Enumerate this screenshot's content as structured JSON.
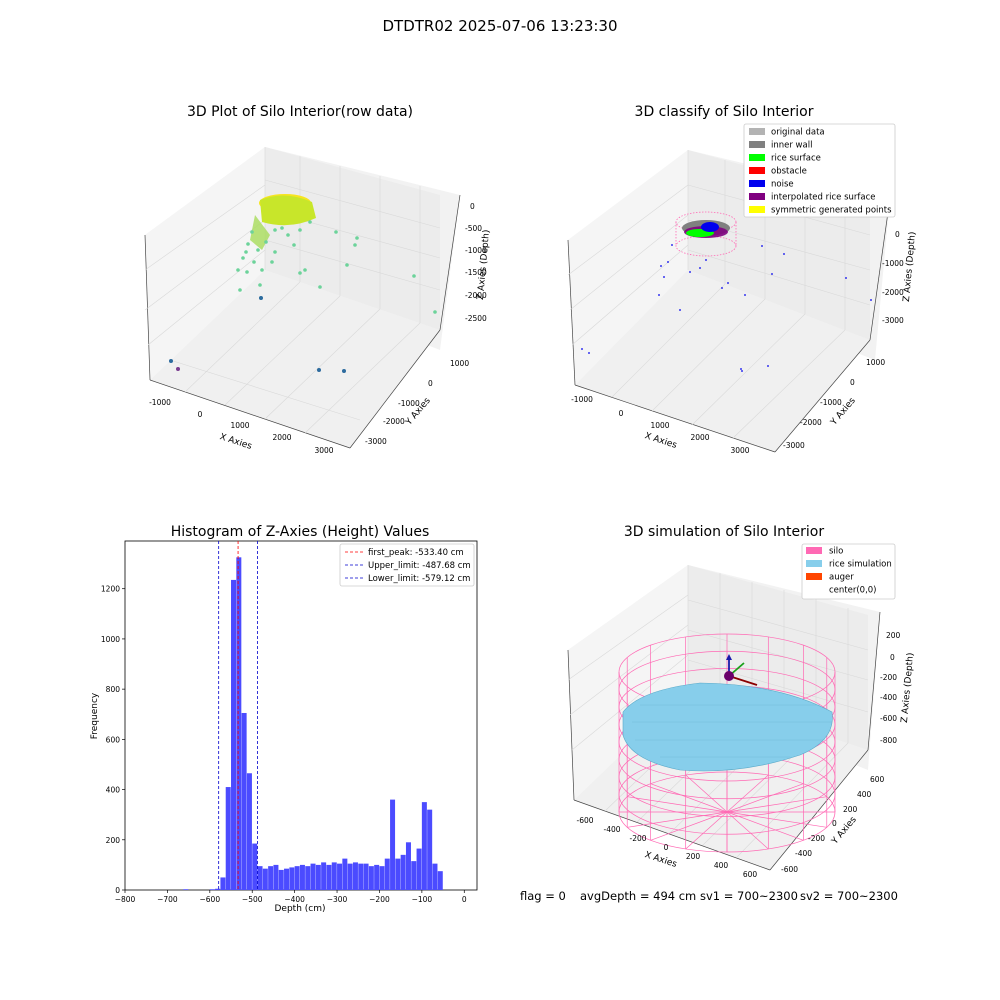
{
  "figure": {
    "title": "DTDTR02 2025-07-06 13:23:30",
    "footer": {
      "flag": "flag = 0",
      "avg_depth": "avgDepth = 494 cm",
      "sv1": "sv1 = 700~2300",
      "sv2": "sv2 = 700~2300"
    }
  },
  "chart_data": [
    {
      "type": "scatter",
      "title": "3D Plot of Silo Interior(row data)",
      "xlabel": "X Axies",
      "ylabel": "Y Axies",
      "zlabel": "Z Axies (Depth)",
      "x_ticks": [
        "-1000",
        "0",
        "1000",
        "2000",
        "3000"
      ],
      "y_ticks": [
        "1000",
        "0",
        "-1000",
        "-2000",
        "-3000"
      ],
      "z_ticks": [
        "0",
        "-500",
        "-1000",
        "-1500",
        "-2000",
        "-2500"
      ],
      "colors": {
        "dense_cluster": "#c8e62a",
        "mid_points": "#6cd39a",
        "far_points": "#2d6b9e"
      }
    },
    {
      "type": "scatter",
      "title": "3D classify of Silo Interior",
      "xlabel": "X Axies",
      "ylabel": "Y Axies",
      "zlabel": "Z Axies (Depth)",
      "x_ticks": [
        "-1000",
        "0",
        "1000",
        "2000",
        "3000"
      ],
      "y_ticks": [
        "1000",
        "0",
        "-1000",
        "-2000",
        "-3000"
      ],
      "z_ticks": [
        "0",
        "-1000",
        "-2000",
        "-3000"
      ],
      "legend": [
        {
          "label": "original data",
          "color": "#b3b3b3"
        },
        {
          "label": "inner wall",
          "color": "#808080"
        },
        {
          "label": "rice surface",
          "color": "#00ff00"
        },
        {
          "label": "obstacle",
          "color": "#ff0000"
        },
        {
          "label": "noise",
          "color": "#0000ee"
        },
        {
          "label": "interpolated rice surface",
          "color": "#800080"
        },
        {
          "label": "symmetric generated points",
          "color": "#ffff00"
        }
      ],
      "legend_position": "top-right"
    },
    {
      "type": "bar",
      "title": "Histogram of Z-Axies (Height) Values",
      "xlabel": "Depth (cm)",
      "ylabel": "Frequency",
      "xlim": [
        -800,
        30
      ],
      "ylim": [
        0,
        1390
      ],
      "x_ticks": [
        -800,
        -700,
        -600,
        -500,
        -400,
        -300,
        -200,
        -100,
        0
      ],
      "y_ticks": [
        0,
        200,
        400,
        600,
        800,
        1000,
        1200
      ],
      "bin_width": 12.5,
      "bins": [
        {
          "start": -662.5,
          "count": 3
        },
        {
          "start": -600,
          "count": 3
        },
        {
          "start": -587.5,
          "count": 5
        },
        {
          "start": -575,
          "count": 50
        },
        {
          "start": -562.5,
          "count": 410
        },
        {
          "start": -550,
          "count": 1235
        },
        {
          "start": -537.5,
          "count": 1325
        },
        {
          "start": -525,
          "count": 705
        },
        {
          "start": -512.5,
          "count": 465
        },
        {
          "start": -500,
          "count": 185
        },
        {
          "start": -487.5,
          "count": 95
        },
        {
          "start": -475,
          "count": 85
        },
        {
          "start": -462.5,
          "count": 95
        },
        {
          "start": -450,
          "count": 100
        },
        {
          "start": -437.5,
          "count": 80
        },
        {
          "start": -425,
          "count": 85
        },
        {
          "start": -412.5,
          "count": 90
        },
        {
          "start": -400,
          "count": 95
        },
        {
          "start": -387.5,
          "count": 100
        },
        {
          "start": -375,
          "count": 95
        },
        {
          "start": -362.5,
          "count": 105
        },
        {
          "start": -350,
          "count": 100
        },
        {
          "start": -337.5,
          "count": 110
        },
        {
          "start": -325,
          "count": 100
        },
        {
          "start": -312.5,
          "count": 110
        },
        {
          "start": -300,
          "count": 105
        },
        {
          "start": -287.5,
          "count": 125
        },
        {
          "start": -275,
          "count": 105
        },
        {
          "start": -262.5,
          "count": 110
        },
        {
          "start": -250,
          "count": 105
        },
        {
          "start": -237.5,
          "count": 105
        },
        {
          "start": -225,
          "count": 95
        },
        {
          "start": -212.5,
          "count": 100
        },
        {
          "start": -200,
          "count": 95
        },
        {
          "start": -187.5,
          "count": 125
        },
        {
          "start": -175,
          "count": 360
        },
        {
          "start": -162.5,
          "count": 125
        },
        {
          "start": -150,
          "count": 140
        },
        {
          "start": -137.5,
          "count": 190
        },
        {
          "start": -125,
          "count": 115
        },
        {
          "start": -112.5,
          "count": 165
        },
        {
          "start": -100,
          "count": 350
        },
        {
          "start": -87.5,
          "count": 320
        },
        {
          "start": -75,
          "count": 105
        },
        {
          "start": -62.5,
          "count": 75
        }
      ],
      "bar_color": "#4b4bff",
      "lines": [
        {
          "label": "first_peak: -533.40 cm",
          "value": -533.4,
          "color": "#ff0000"
        },
        {
          "label": "Upper_limit: -487.68 cm",
          "value": -487.68,
          "color": "#0000cc"
        },
        {
          "label": "Lower_limit: -579.12 cm",
          "value": -579.12,
          "color": "#0000cc"
        }
      ],
      "legend_position": "top-right"
    },
    {
      "type": "scatter",
      "title": "3D simulation of Silo Interior",
      "xlabel": "X Axies",
      "ylabel": "Y Axies",
      "zlabel": "Z Axies (Depth)",
      "x_ticks": [
        "-600",
        "-400",
        "-200",
        "0",
        "200",
        "400",
        "600"
      ],
      "y_ticks": [
        "600",
        "400",
        "200",
        "0",
        "-200",
        "-400",
        "-600"
      ],
      "z_ticks": [
        "200",
        "0",
        "-200",
        "-400",
        "-600",
        "-800"
      ],
      "legend": [
        {
          "label": "silo",
          "color": "#ff69b4"
        },
        {
          "label": "rice simulation",
          "color": "#87ceeb"
        },
        {
          "label": "auger",
          "color": "#ff4500"
        },
        {
          "label": "center(0,0)",
          "color": ""
        }
      ],
      "legend_position": "top-right"
    }
  ]
}
